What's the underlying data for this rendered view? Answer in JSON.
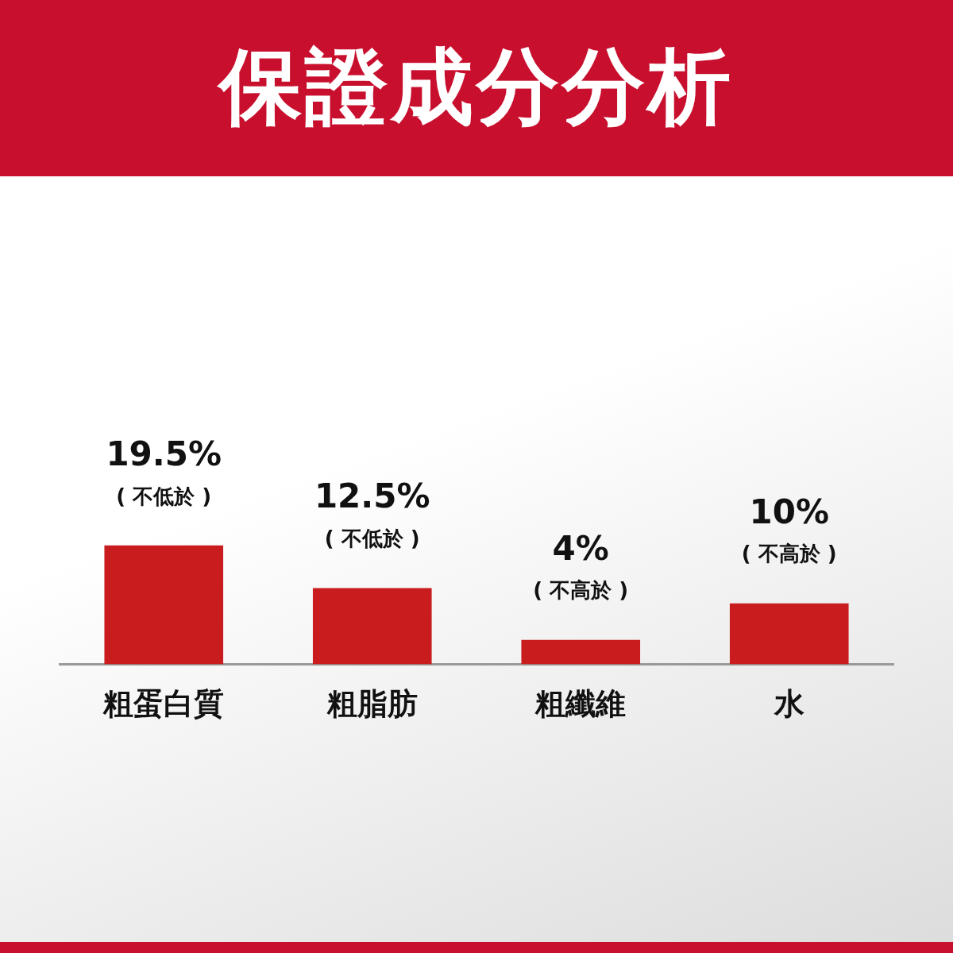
{
  "chart_data": {
    "type": "bar",
    "title": "保證成分分析",
    "categories": [
      "粗蛋白質",
      "粗脂肪",
      "粗纖維",
      "水"
    ],
    "values": [
      19.5,
      12.5,
      4,
      10
    ],
    "color": "#c81c1e",
    "value_labels": [
      "19.5%",
      "12.5%",
      "4%",
      "10%"
    ],
    "annotations": [
      {
        "text": "( 不低於 )",
        "x": "粗蛋白質",
        "y": 19.5
      },
      {
        "text": "( 不低於 )",
        "x": "粗脂肪",
        "y": 12.5
      },
      {
        "text": "( 不高於 )",
        "x": "粗纖維",
        "y": 4
      },
      {
        "text": "( 不高於 )",
        "x": "水",
        "y": 10
      }
    ],
    "grid": false,
    "legend": false
  }
}
